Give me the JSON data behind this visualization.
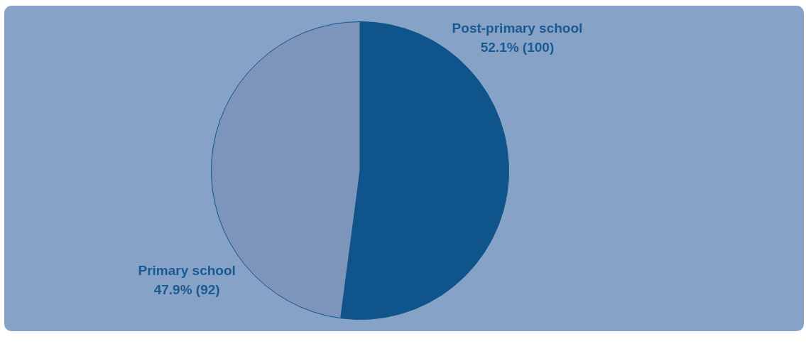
{
  "chart_data": {
    "type": "pie",
    "categories": [
      "Post-primary school",
      "Primary school"
    ],
    "values": [
      100,
      92
    ],
    "value_labels": [
      "52.1% (100)",
      "47.9% (92)"
    ],
    "colors": [
      "#0f548b",
      "#7e95bb"
    ]
  }
}
